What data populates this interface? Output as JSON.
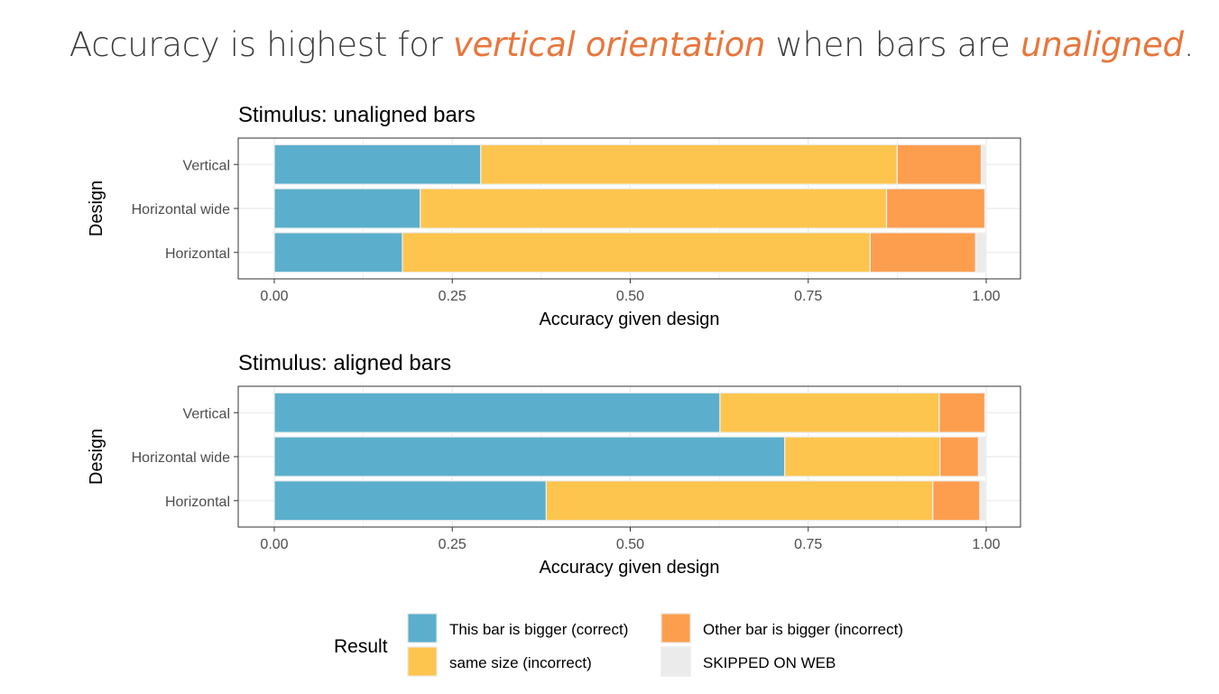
{
  "title": {
    "parts": [
      {
        "text": "Accuracy is highest for ",
        "emph": false
      },
      {
        "text": "vertical orientation",
        "emph": true
      },
      {
        "text": " when bars are ",
        "emph": false
      },
      {
        "text": "unaligned",
        "emph": true
      },
      {
        "text": ".",
        "emph": false
      }
    ]
  },
  "colors": {
    "This bar is bigger (correct)": "#5bafcc",
    "same size (incorrect)": "#fdc54e",
    "Other bar is bigger (incorrect)": "#fd9e4f",
    "SKIPPED ON WEB": "#ebebeb",
    "title_accent": "#e8763c"
  },
  "chart_data": [
    {
      "type": "bar",
      "orientation": "horizontal",
      "stacked": true,
      "title": "Stimulus: unaligned bars",
      "xlabel": "Accuracy given design",
      "ylabel": "Design",
      "xlim": [
        0,
        1
      ],
      "x_ticks": [
        "0.00",
        "0.25",
        "0.50",
        "0.75",
        "1.00"
      ],
      "categories": [
        "Vertical",
        "Horizontal wide",
        "Horizontal"
      ],
      "grid": true,
      "series": [
        {
          "name": "This bar is bigger (correct)",
          "values": [
            0.29,
            0.205,
            0.18
          ]
        },
        {
          "name": "same size (incorrect)",
          "values": [
            0.585,
            0.655,
            0.657
          ]
        },
        {
          "name": "Other bar is bigger (incorrect)",
          "values": [
            0.118,
            0.138,
            0.148
          ]
        }
      ]
    },
    {
      "type": "bar",
      "orientation": "horizontal",
      "stacked": true,
      "title": "Stimulus: aligned bars",
      "xlabel": "Accuracy given design",
      "ylabel": "Design",
      "xlim": [
        0,
        1
      ],
      "x_ticks": [
        "0.00",
        "0.25",
        "0.50",
        "0.75",
        "1.00"
      ],
      "categories": [
        "Vertical",
        "Horizontal wide",
        "Horizontal"
      ],
      "grid": true,
      "series": [
        {
          "name": "This bar is bigger (correct)",
          "values": [
            0.626,
            0.717,
            0.382
          ]
        },
        {
          "name": "same size (incorrect)",
          "values": [
            0.308,
            0.218,
            0.543
          ]
        },
        {
          "name": "Other bar is bigger (incorrect)",
          "values": [
            0.064,
            0.054,
            0.066
          ]
        }
      ]
    }
  ],
  "legend": {
    "title": "Result",
    "placement": "bottom",
    "items": [
      "This bar is bigger (correct)",
      "same size (incorrect)",
      "Other bar is bigger (incorrect)",
      "SKIPPED ON WEB"
    ]
  }
}
